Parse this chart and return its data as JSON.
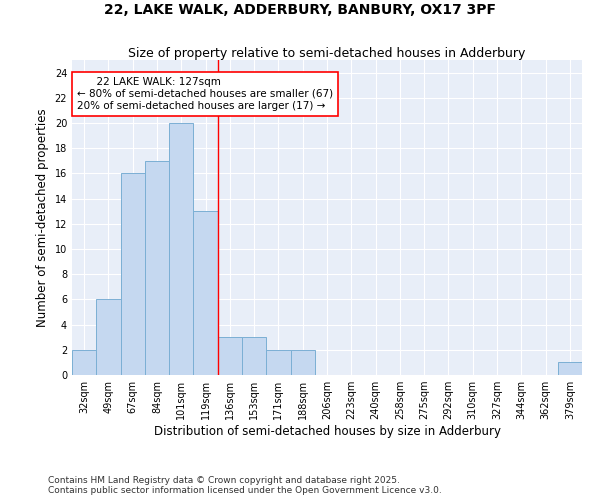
{
  "title": "22, LAKE WALK, ADDERBURY, BANBURY, OX17 3PF",
  "subtitle": "Size of property relative to semi-detached houses in Adderbury",
  "xlabel": "Distribution of semi-detached houses by size in Adderbury",
  "ylabel": "Number of semi-detached properties",
  "bins": [
    "32sqm",
    "49sqm",
    "67sqm",
    "84sqm",
    "101sqm",
    "119sqm",
    "136sqm",
    "153sqm",
    "171sqm",
    "188sqm",
    "206sqm",
    "223sqm",
    "240sqm",
    "258sqm",
    "275sqm",
    "292sqm",
    "310sqm",
    "327sqm",
    "344sqm",
    "362sqm",
    "379sqm"
  ],
  "values": [
    2,
    6,
    16,
    17,
    20,
    13,
    3,
    3,
    2,
    2,
    0,
    0,
    0,
    0,
    0,
    0,
    0,
    0,
    0,
    0,
    1
  ],
  "bar_color": "#c5d8f0",
  "bar_edge_color": "#7bafd4",
  "property_line_x": 5.5,
  "annotation_label": "22 LAKE WALK: 127sqm",
  "annotation_line1": "← 80% of semi-detached houses are smaller (67)",
  "annotation_line2": "20% of semi-detached houses are larger (17) →",
  "ylim": [
    0,
    25
  ],
  "yticks": [
    0,
    2,
    4,
    6,
    8,
    10,
    12,
    14,
    16,
    18,
    20,
    22,
    24
  ],
  "footer_line1": "Contains HM Land Registry data © Crown copyright and database right 2025.",
  "footer_line2": "Contains public sector information licensed under the Open Government Licence v3.0.",
  "bg_color": "#e8eef8",
  "grid_color": "#ffffff",
  "title_fontsize": 10,
  "subtitle_fontsize": 9,
  "tick_fontsize": 7,
  "label_fontsize": 8.5,
  "footer_fontsize": 6.5
}
